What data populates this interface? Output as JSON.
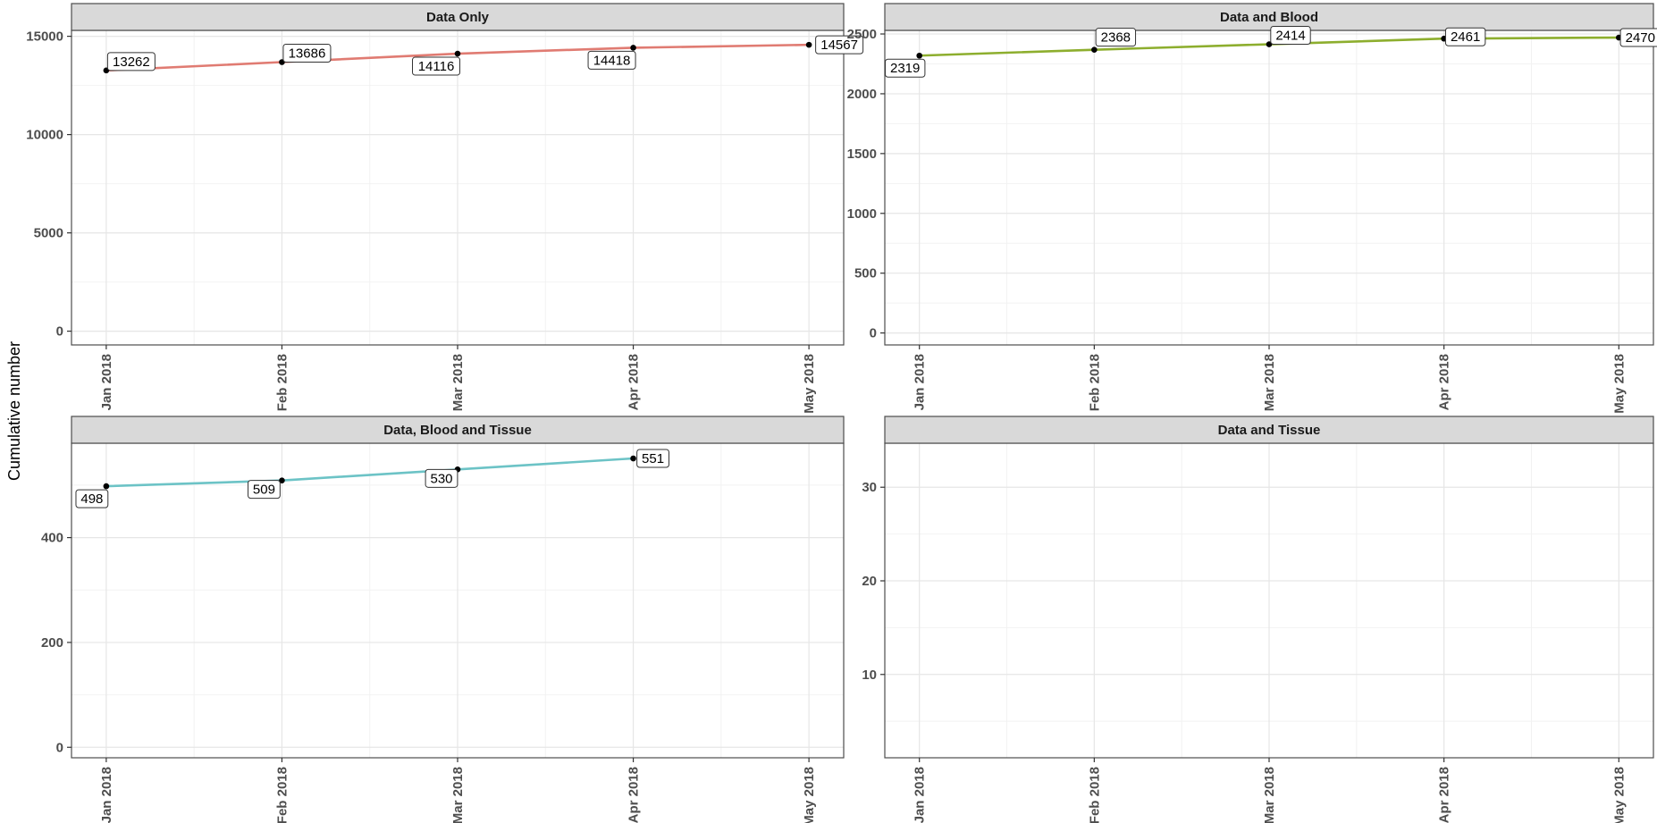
{
  "ylabel": "Cumulative number",
  "chart_data": [
    {
      "type": "line",
      "title": "Data Only",
      "categories": [
        "Jan 2018",
        "Feb 2018",
        "Mar 2018",
        "Apr 2018",
        "May 2018"
      ],
      "series": [
        {
          "values": [
            13262,
            13686,
            14116,
            14418,
            14567
          ],
          "color": "#E07B72"
        }
      ],
      "yticks": [
        0,
        5000,
        10000,
        15000
      ],
      "ylim": [
        -700,
        15300
      ],
      "grid": true
    },
    {
      "type": "line",
      "title": "Data and Blood",
      "categories": [
        "Jan 2018",
        "Feb 2018",
        "Mar 2018",
        "Apr 2018",
        "May 2018"
      ],
      "series": [
        {
          "values": [
            2319,
            2368,
            2414,
            2461,
            2470
          ],
          "color": "#8DAE2E"
        }
      ],
      "yticks": [
        0,
        500,
        1000,
        1500,
        2000,
        2500
      ],
      "ylim": [
        -100,
        2530
      ],
      "grid": true
    },
    {
      "type": "line",
      "title": "Data, Blood and Tissue",
      "categories": [
        "Jan 2018",
        "Feb 2018",
        "Mar 2018",
        "Apr 2018",
        "May 2018"
      ],
      "series": [
        {
          "values": [
            498,
            509,
            530,
            551,
            null
          ],
          "color": "#6CC3C6"
        }
      ],
      "yticks": [
        0,
        200,
        400
      ],
      "ylim": [
        -20,
        580
      ],
      "grid": true
    },
    {
      "type": "line",
      "title": "Data and Tissue",
      "categories": [
        "Jan 2018",
        "Feb 2018",
        "Mar 2018",
        "Apr 2018",
        "May 2018"
      ],
      "series": [],
      "yticks": [
        10,
        20,
        30
      ],
      "ylim": [
        1.1,
        34.7
      ],
      "grid": true
    }
  ]
}
